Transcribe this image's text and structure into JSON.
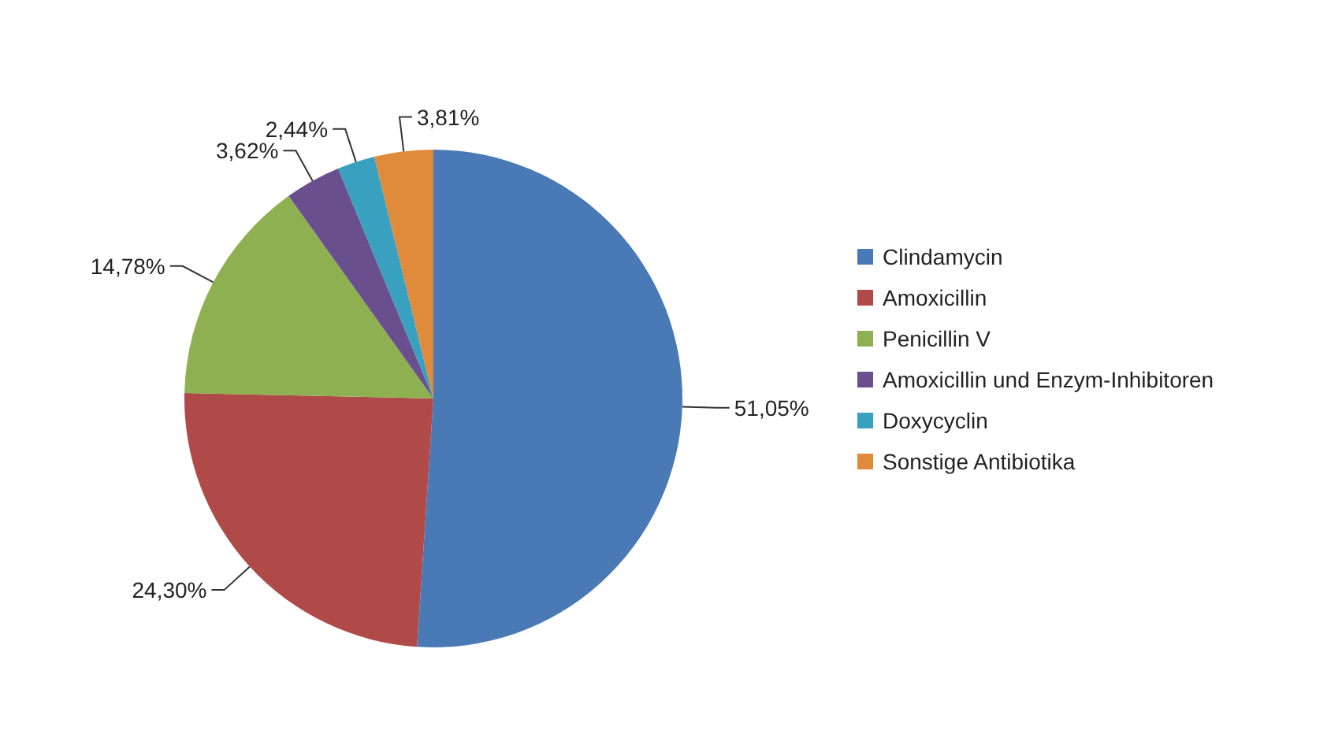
{
  "chart_data": {
    "type": "pie",
    "categories": [
      "Clindamycin",
      "Amoxicillin",
      "Penicillin V",
      "Amoxicillin und Enzym-Inhibitoren",
      "Doxycyclin",
      "Sonstige Antibiotika"
    ],
    "values": [
      51.05,
      24.3,
      14.78,
      3.62,
      2.44,
      3.81
    ],
    "value_labels": [
      "51,05%",
      "24,30%",
      "14,78%",
      "3,62%",
      "2,44%",
      "3,81%"
    ],
    "colors": [
      "#4a7ab5",
      "#b04a48",
      "#8fb050",
      "#6a4f8f",
      "#3aa0bf",
      "#e08a3c"
    ],
    "legend": "right"
  }
}
